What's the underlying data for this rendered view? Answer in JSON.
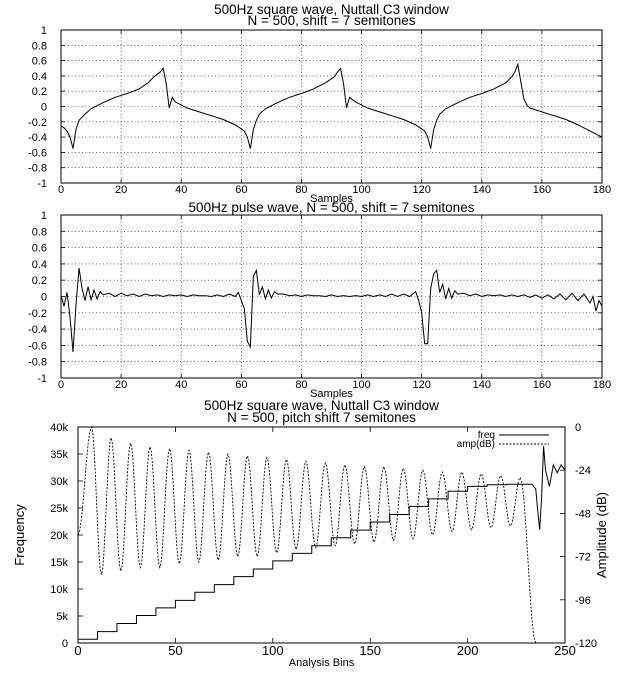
{
  "chart_data": [
    {
      "type": "line",
      "title_lines": [
        "500Hz square wave,  Nuttall C3 window",
        "N = 500, shift = 7 semitones"
      ],
      "xlabel": "Samples",
      "ylabel": "",
      "xlim": [
        0,
        180
      ],
      "ylim": [
        -1,
        1
      ],
      "xticks": [
        0,
        20,
        40,
        60,
        80,
        100,
        120,
        140,
        160,
        180
      ],
      "yticks": [
        -1,
        -0.8,
        -0.6,
        -0.4,
        -0.2,
        0,
        0.2,
        0.4,
        0.6,
        0.8,
        1
      ],
      "ytick_labels": [
        "-1",
        "-0.8",
        "-0.6",
        "-0.4",
        "-0.2",
        "0",
        "0.2",
        "0.4",
        "0.6",
        "0.8",
        "1"
      ],
      "grid": true,
      "series": [
        {
          "x": [
            0,
            1,
            2,
            3,
            4,
            5,
            6,
            8,
            10,
            14,
            18,
            22,
            26,
            29,
            31,
            33,
            34,
            35,
            36,
            37,
            38,
            42,
            46,
            50,
            54,
            58,
            61,
            62,
            63,
            64,
            65,
            66,
            68,
            72,
            76,
            80,
            84,
            88,
            91,
            92,
            93,
            94,
            95,
            96,
            98,
            102,
            106,
            110,
            114,
            118,
            121,
            122,
            123,
            124,
            125,
            126,
            128,
            132,
            136,
            140,
            144,
            148,
            150,
            151,
            152,
            153,
            154,
            155,
            156,
            160,
            164,
            168,
            172,
            176,
            178,
            180
          ],
          "y": [
            -0.25,
            -0.28,
            -0.32,
            -0.4,
            -0.55,
            -0.3,
            -0.18,
            -0.1,
            -0.03,
            0.05,
            0.12,
            0.17,
            0.23,
            0.31,
            0.39,
            0.45,
            0.5,
            0.3,
            -0.02,
            0.12,
            0.06,
            -0.02,
            -0.07,
            -0.12,
            -0.17,
            -0.24,
            -0.32,
            -0.4,
            -0.55,
            -0.3,
            -0.18,
            -0.1,
            -0.03,
            0.05,
            0.12,
            0.17,
            0.23,
            0.31,
            0.39,
            0.45,
            0.5,
            0.3,
            -0.02,
            0.12,
            0.06,
            -0.02,
            -0.07,
            -0.12,
            -0.17,
            -0.24,
            -0.32,
            -0.4,
            -0.55,
            -0.3,
            -0.18,
            -0.1,
            -0.03,
            0.05,
            0.12,
            0.17,
            0.23,
            0.31,
            0.39,
            0.45,
            0.55,
            0.32,
            0.1,
            0.02,
            -0.02,
            -0.07,
            -0.12,
            -0.17,
            -0.24,
            -0.32,
            -0.36,
            -0.4
          ]
        }
      ]
    },
    {
      "type": "line",
      "title_lines": [
        "500Hz pulse wave, N = 500, shift = 7 semitones"
      ],
      "xlabel": "Samples",
      "ylabel": "",
      "xlim": [
        0,
        180
      ],
      "ylim": [
        -1,
        1
      ],
      "xticks": [
        0,
        20,
        40,
        60,
        80,
        100,
        120,
        140,
        160,
        180
      ],
      "yticks": [
        -1,
        -0.8,
        -0.6,
        -0.4,
        -0.2,
        0,
        0.2,
        0.4,
        0.6,
        0.8,
        1
      ],
      "ytick_labels": [
        "-1",
        "-0.8",
        "-0.6",
        "-0.4",
        "-0.2",
        "0",
        "0.2",
        "0.4",
        "0.6",
        "0.8",
        "1"
      ],
      "grid": true,
      "series": [
        {
          "x": [
            0,
            1,
            2,
            3,
            4,
            5,
            6,
            7,
            8,
            9,
            10,
            11,
            12,
            13,
            14,
            16,
            18,
            20,
            22,
            24,
            26,
            28,
            30,
            32,
            34,
            36,
            38,
            40,
            42,
            44,
            46,
            48,
            50,
            52,
            54,
            56,
            58,
            59,
            60,
            61,
            62,
            63,
            64,
            65,
            66,
            67,
            68,
            69,
            70,
            71,
            72,
            74,
            76,
            78,
            80,
            82,
            84,
            86,
            88,
            90,
            92,
            94,
            96,
            98,
            100,
            102,
            104,
            106,
            108,
            110,
            112,
            114,
            116,
            118,
            119,
            120,
            121,
            122,
            123,
            124,
            125,
            126,
            127,
            128,
            129,
            130,
            131,
            132,
            134,
            136,
            138,
            140,
            142,
            144,
            146,
            148,
            150,
            152,
            154,
            156,
            158,
            160,
            162,
            164,
            166,
            168,
            170,
            172,
            174,
            176,
            177,
            178,
            179,
            180
          ],
          "y": [
            0.02,
            -0.12,
            0.05,
            -0.25,
            -0.68,
            -0.1,
            0.35,
            0.1,
            -0.05,
            0.12,
            -0.04,
            0.08,
            -0.03,
            0.06,
            0.02,
            0.04,
            0.0,
            0.04,
            0.01,
            0.03,
            0.0,
            0.03,
            0.01,
            0.02,
            0.0,
            0.02,
            0.01,
            0.02,
            0.0,
            0.02,
            0.01,
            0.01,
            0.0,
            0.02,
            0.0,
            0.03,
            0.0,
            0.05,
            -0.05,
            -0.15,
            -0.55,
            -0.62,
            0.25,
            0.32,
            0.02,
            0.12,
            -0.03,
            0.08,
            -0.02,
            0.06,
            0.03,
            0.03,
            0.01,
            0.02,
            0.0,
            0.02,
            0.01,
            0.01,
            0.0,
            0.02,
            0.0,
            0.01,
            0.0,
            0.01,
            0.0,
            0.02,
            0.0,
            0.02,
            0.0,
            0.03,
            0.0,
            0.03,
            0.0,
            0.06,
            -0.05,
            -0.2,
            -0.58,
            -0.58,
            0.1,
            0.28,
            0.32,
            0.05,
            0.15,
            -0.03,
            0.1,
            -0.02,
            0.07,
            0.03,
            0.04,
            0.01,
            0.03,
            0.0,
            0.02,
            0.01,
            0.02,
            0.0,
            0.02,
            0.0,
            0.02,
            -0.01,
            0.02,
            -0.02,
            0.02,
            -0.03,
            0.03,
            -0.04,
            0.04,
            -0.05,
            0.03,
            -0.08,
            0.0,
            -0.18,
            -0.05,
            -0.12
          ]
        }
      ]
    },
    {
      "type": "line",
      "title_lines": [
        "500Hz square wave, Nuttall C3 window",
        "N = 500, pitch shift 7 semitones"
      ],
      "xlabel": "Analysis Bins",
      "ylabel": "Frequency",
      "y2label": "Amplitude (dB)",
      "xlim": [
        0,
        250
      ],
      "ylim": [
        0,
        40000
      ],
      "y2lim": [
        -120,
        0
      ],
      "xticks": [
        0,
        50,
        100,
        150,
        200,
        250
      ],
      "yticks": [
        0,
        5000,
        10000,
        15000,
        20000,
        25000,
        30000,
        35000,
        40000
      ],
      "ytick_labels": [
        "0",
        "5k",
        "10k",
        "15k",
        "20k",
        "25k",
        "30k",
        "35k",
        "40k"
      ],
      "y2ticks": [
        -120,
        -96,
        -72,
        -48,
        -24,
        0
      ],
      "y2tick_labels": [
        "-120",
        "-96",
        "-72",
        "-48",
        "-24",
        "0"
      ],
      "grid": false,
      "legend": {
        "placement": "top-right",
        "entries": [
          "freq",
          "amp(dB)"
        ]
      },
      "freq": {
        "bin_edges": [
          0,
          10,
          20,
          30,
          40,
          50,
          60,
          70,
          80,
          90,
          100,
          110,
          120,
          130,
          140,
          150,
          160,
          170,
          180,
          190,
          200,
          210,
          220,
          230
        ],
        "values": [
          700,
          2100,
          3600,
          5100,
          6500,
          7900,
          9400,
          10800,
          12300,
          13700,
          15200,
          16600,
          18000,
          19500,
          20900,
          22400,
          23800,
          25300,
          26700,
          28100,
          29000,
          29300,
          29400
        ],
        "tail_x": [
          230,
          233,
          235,
          236,
          237,
          238,
          239,
          240,
          242,
          244,
          246,
          248,
          250
        ],
        "tail_y": [
          29400,
          29400,
          28500,
          24500,
          21000,
          27000,
          36500,
          32000,
          29000,
          33000,
          31500,
          33000,
          32000
        ]
      },
      "amp": {
        "peak_bins": [
          7,
          17,
          27,
          37,
          47,
          57,
          67,
          77,
          87,
          97,
          107,
          117,
          127,
          137,
          147,
          157,
          167,
          177,
          187,
          197,
          207,
          217,
          227
        ],
        "peak_db": [
          0,
          -6,
          -9,
          -11,
          -12,
          -13,
          -14,
          -15,
          -16,
          -17,
          -18,
          -19,
          -20,
          -21,
          -22,
          -22,
          -23,
          -24,
          -25,
          -25,
          -26,
          -27,
          -28
        ],
        "trough_db": [
          -82,
          -80,
          -78,
          -78,
          -76,
          -75,
          -74,
          -72,
          -72,
          -70,
          -68,
          -67,
          -66,
          -65,
          -64,
          -63,
          -62,
          -60,
          -58,
          -57,
          -56,
          -55
        ],
        "start_db": -60,
        "end_db": -120,
        "end_bin": 235
      }
    }
  ]
}
